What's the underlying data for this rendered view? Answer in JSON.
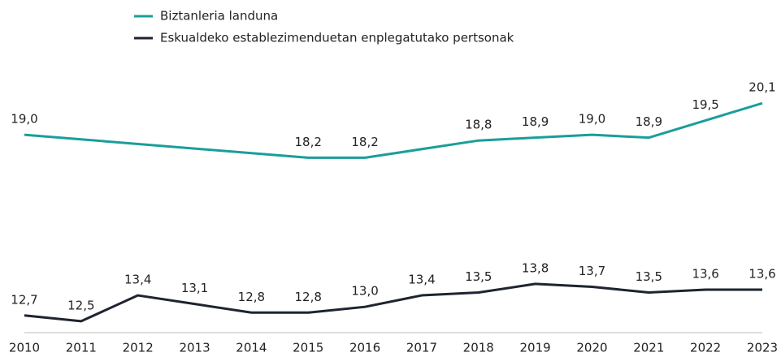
{
  "chart_data": {
    "type": "line",
    "x": [
      2010,
      2011,
      2012,
      2013,
      2014,
      2015,
      2016,
      2017,
      2018,
      2019,
      2020,
      2021,
      2022,
      2023
    ],
    "xlim": [
      2010,
      2023
    ],
    "ylim": [
      12.1,
      23.7
    ],
    "legend": "top",
    "series": [
      {
        "name": "Biztanleria landuna",
        "color": "#1a9e9a",
        "x": [
          2010,
          2015,
          2016,
          2018,
          2019,
          2020,
          2021,
          2022,
          2023
        ],
        "values": [
          19.0,
          18.2,
          18.2,
          18.8,
          18.9,
          19.0,
          18.9,
          19.5,
          20.1
        ],
        "value_labels": [
          "19,0",
          "18,2",
          "18,2",
          "18,8",
          "18,9",
          "19,0",
          "18,9",
          "19,5",
          "20,1"
        ]
      },
      {
        "name": "Eskualdeko establezimenduetan enplegatutako pertsonak",
        "color": "#1e2430",
        "values": [
          12.7,
          12.5,
          13.4,
          13.1,
          12.8,
          12.8,
          13.0,
          13.4,
          13.5,
          13.8,
          13.7,
          13.5,
          13.6,
          13.6
        ],
        "value_labels": [
          "12,7",
          "12,5",
          "13,4",
          "13,1",
          "12,8",
          "12,8",
          "13,0",
          "13,4",
          "13,5",
          "13,8",
          "13,7",
          "13,5",
          "13,6",
          "13,6"
        ]
      }
    ]
  }
}
